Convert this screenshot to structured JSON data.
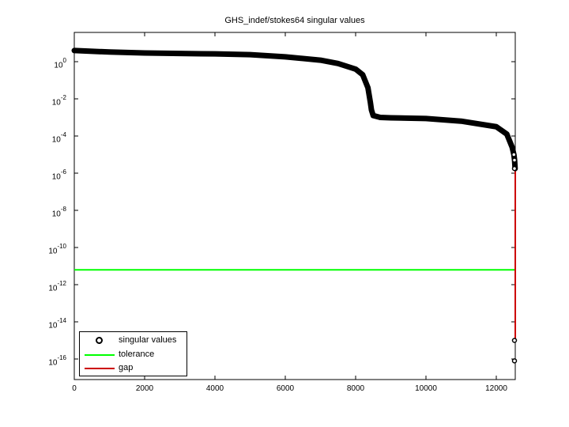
{
  "chart_data": {
    "type": "scatter",
    "title": "GHS_indef/stokes64 singular values",
    "xlabel": "",
    "ylabel": "",
    "yscale": "log",
    "xlim": [
      0,
      12546
    ],
    "ylim_log10": [
      -17,
      1.6
    ],
    "x_ticks": [
      0,
      2000,
      4000,
      6000,
      8000,
      10000,
      12000
    ],
    "x_tick_labels": [
      "0",
      "2000",
      "4000",
      "6000",
      "8000",
      "10000",
      "12000"
    ],
    "y_ticks_log10": [
      0,
      -2,
      -4,
      -6,
      -8,
      -10,
      -12,
      -14,
      -16
    ],
    "y_tick_labels": [
      {
        "base": "10",
        "exp": "0"
      },
      {
        "base": "10",
        "exp": "-2"
      },
      {
        "base": "10",
        "exp": "-4"
      },
      {
        "base": "10",
        "exp": "-6"
      },
      {
        "base": "10",
        "exp": "-8"
      },
      {
        "base": "10",
        "exp": "-10"
      },
      {
        "base": "10",
        "exp": "-12"
      },
      {
        "base": "10",
        "exp": "-14"
      },
      {
        "base": "10",
        "exp": "-16"
      }
    ],
    "grid": false,
    "legend_position": "lower left",
    "series": [
      {
        "name": "singular values",
        "style": "black circle markers",
        "color": "#000000",
        "x": [
          0,
          1000,
          2000,
          3000,
          4000,
          5000,
          6000,
          7000,
          7500,
          8000,
          8200,
          8350,
          8420,
          8450,
          8500,
          8700,
          9000,
          10000,
          11000,
          12000,
          12300,
          12450,
          12500,
          12520,
          12535,
          12544,
          12546
        ],
        "log10_y": [
          0.6,
          0.52,
          0.47,
          0.44,
          0.42,
          0.38,
          0.26,
          0.08,
          -0.1,
          -0.4,
          -0.7,
          -1.4,
          -2.2,
          -2.6,
          -2.9,
          -3.0,
          -3.02,
          -3.06,
          -3.2,
          -3.5,
          -3.9,
          -4.6,
          -5.0,
          -5.3,
          -5.75,
          -15.0,
          -16.1
        ]
      },
      {
        "name": "tolerance",
        "style": "line",
        "color": "#00ff00",
        "x": [
          0,
          12546
        ],
        "log10_y": [
          -11.2,
          -11.2
        ]
      },
      {
        "name": "gap",
        "style": "line",
        "color": "#cc0000",
        "x": [
          12540,
          12540
        ],
        "log10_y": [
          -5.75,
          -15.0
        ]
      }
    ]
  },
  "legend": {
    "items": [
      {
        "label": "singular values",
        "color": "#000000",
        "kind": "marker"
      },
      {
        "label": "tolerance",
        "color": "#00ff00",
        "kind": "line"
      },
      {
        "label": "gap",
        "color": "#cc0000",
        "kind": "line"
      }
    ]
  }
}
